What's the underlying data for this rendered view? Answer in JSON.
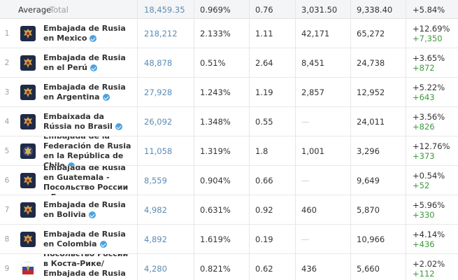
{
  "average": {
    "label": "Average",
    "total_label": "Total",
    "subscribers": "18,459.35",
    "er": "0.969%",
    "interactions": "0.76",
    "views": "3,031.50",
    "reach": "9,338.40",
    "growth": "+5.84%"
  },
  "rows": [
    {
      "rank": "1",
      "name": "Embajada de Rusia en Mexico",
      "subscribers": "218,212",
      "er": "2.133%",
      "interactions": "1.11",
      "views": "42,171",
      "reach": "65,272",
      "growth_pct": "+12.69%",
      "growth_abs": "+7,350"
    },
    {
      "rank": "2",
      "name": "Embajada de Rusia en el Perú",
      "subscribers": "48,878",
      "er": "0.51%",
      "interactions": "2.64",
      "views": "8,451",
      "reach": "24,738",
      "growth_pct": "+3.65%",
      "growth_abs": "+872"
    },
    {
      "rank": "3",
      "name": "Embajada de Rusia en Argentina",
      "subscribers": "27,928",
      "er": "1.243%",
      "interactions": "1.19",
      "views": "2,857",
      "reach": "12,952",
      "growth_pct": "+5.22%",
      "growth_abs": "+643"
    },
    {
      "rank": "4",
      "name": "Embaixada da Rússia no Brasil",
      "subscribers": "26,092",
      "er": "1.348%",
      "interactions": "0.55",
      "views": "—",
      "reach": "24,011",
      "growth_pct": "+3.56%",
      "growth_abs": "+826"
    },
    {
      "rank": "5",
      "name": "Embajada de la Federación de Rusia en la República de Chile",
      "subscribers": "11,058",
      "er": "1.319%",
      "interactions": "1.8",
      "views": "1,001",
      "reach": "3,296",
      "growth_pct": "+12.76%",
      "growth_abs": "+373"
    },
    {
      "rank": "6",
      "name": "Embajada de Rusia en Guatemala - Посольство России в Гватемале",
      "subscribers": "8,559",
      "er": "0.904%",
      "interactions": "0.66",
      "views": "—",
      "reach": "9,649",
      "growth_pct": "+0.54%",
      "growth_abs": "+52"
    },
    {
      "rank": "7",
      "name": "Embajada de Rusia en Bolivia",
      "subscribers": "4,982",
      "er": "0.631%",
      "interactions": "0.92",
      "views": "460",
      "reach": "5,870",
      "growth_pct": "+5.96%",
      "growth_abs": "+330"
    },
    {
      "rank": "8",
      "name": "Embajada de Rusia en Colombia",
      "subscribers": "4,892",
      "er": "1.619%",
      "interactions": "0.19",
      "views": "—",
      "reach": "10,966",
      "growth_pct": "+4.14%",
      "growth_abs": "+436"
    },
    {
      "rank": "9",
      "name": "Посольство России в Коста-Рике/ Embajada de Rusia en Costa Rica",
      "subscribers": "4,280",
      "er": "0.821%",
      "interactions": "0.62",
      "views": "436",
      "reach": "5,660",
      "growth_pct": "+2.02%",
      "growth_abs": "+112"
    }
  ],
  "icons": {
    "avatar": "coat-of-arms-icon",
    "verified": "verified-badge-icon"
  },
  "colors": {
    "subscribers_link": "#5b8bb5",
    "growth_delta": "#3d9a3d",
    "verified": "#4aa3df"
  }
}
